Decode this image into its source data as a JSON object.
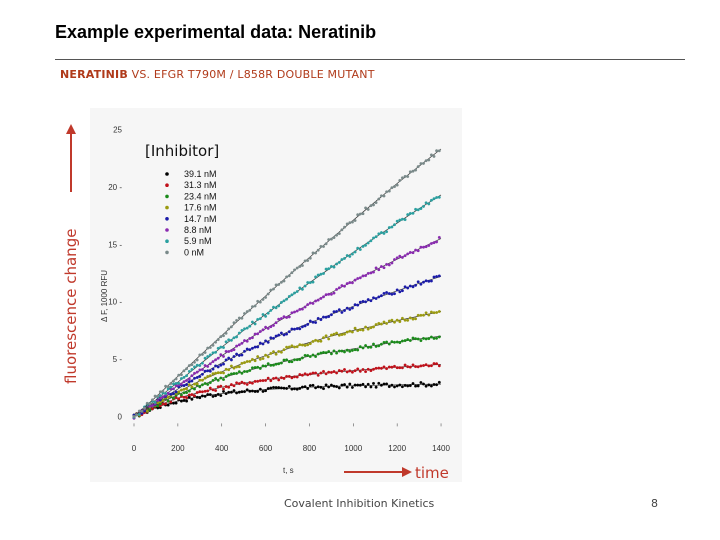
{
  "slide": {
    "title": "Example experimental data: Neratinib",
    "subtitle_bold": "NERATINIB",
    "subtitle_rest": " VS. EFGR T790M / L858R DOUBLE MUTANT",
    "footer": "Covalent Inhibition Kinetics",
    "page_number": "8",
    "annotation_y": "fluorescence change",
    "annotation_x": "time",
    "annotation_color": "#c0392b"
  },
  "chart_data": {
    "type": "line",
    "legend_title": "[Inhibitor]",
    "xlabel": "t, s",
    "ylabel": "Δ F, 1000 RFU",
    "xlim": [
      0,
      1450
    ],
    "ylim": [
      -1,
      26
    ],
    "x_ticks": [
      "0",
      "200",
      "400",
      "600",
      "800",
      "1000",
      "1200",
      "1400"
    ],
    "y_ticks": [
      "0",
      "5",
      "10",
      "15",
      "20",
      "25"
    ],
    "x_tick_values": [
      0,
      200,
      400,
      600,
      800,
      1000,
      1200,
      1400
    ],
    "y_tick_values": [
      0,
      5,
      10,
      15,
      20,
      25
    ],
    "grid": false,
    "legend_position": "top-left",
    "series": [
      {
        "name": "39.1 nM",
        "color": "#000000",
        "x": [
          0,
          100,
          200,
          300,
          400,
          500,
          600,
          700,
          800,
          900,
          1000,
          1100,
          1200,
          1300,
          1400
        ],
        "y": [
          0,
          0.8,
          1.35,
          1.75,
          2.0,
          2.2,
          2.35,
          2.45,
          2.55,
          2.62,
          2.68,
          2.72,
          2.76,
          2.8,
          2.82
        ]
      },
      {
        "name": "31.3 nM",
        "color": "#c0101a",
        "x": [
          0,
          100,
          200,
          300,
          400,
          500,
          600,
          700,
          800,
          900,
          1000,
          1100,
          1200,
          1300,
          1400
        ],
        "y": [
          0,
          0.9,
          1.6,
          2.1,
          2.55,
          2.9,
          3.2,
          3.45,
          3.65,
          3.85,
          4.0,
          4.15,
          4.3,
          4.4,
          4.55
        ]
      },
      {
        "name": "23.4 nM",
        "color": "#1a8a1a",
        "x": [
          0,
          100,
          200,
          300,
          400,
          500,
          600,
          700,
          800,
          900,
          1000,
          1100,
          1200,
          1300,
          1400
        ],
        "y": [
          0,
          1.0,
          1.9,
          2.7,
          3.35,
          3.9,
          4.4,
          4.85,
          5.25,
          5.6,
          5.9,
          6.2,
          6.5,
          6.75,
          7.0
        ]
      },
      {
        "name": "17.6 nM",
        "color": "#9a9a10",
        "x": [
          0,
          100,
          200,
          300,
          400,
          500,
          600,
          700,
          800,
          900,
          1000,
          1100,
          1200,
          1300,
          1400
        ],
        "y": [
          0,
          1.1,
          2.15,
          3.1,
          3.9,
          4.65,
          5.3,
          5.9,
          6.45,
          7.0,
          7.5,
          7.9,
          8.35,
          8.75,
          9.15
        ]
      },
      {
        "name": "14.7 nM",
        "color": "#1a1aa8",
        "x": [
          0,
          100,
          200,
          300,
          400,
          500,
          600,
          700,
          800,
          900,
          1000,
          1100,
          1200,
          1300,
          1400
        ],
        "y": [
          0,
          1.2,
          2.4,
          3.6,
          4.65,
          5.6,
          6.5,
          7.35,
          8.15,
          8.9,
          9.6,
          10.3,
          10.95,
          11.6,
          12.2
        ]
      },
      {
        "name": "8.8 nM",
        "color": "#8a2ab0",
        "x": [
          0,
          100,
          200,
          300,
          400,
          500,
          600,
          700,
          800,
          900,
          1000,
          1100,
          1200,
          1300,
          1400
        ],
        "y": [
          0,
          1.3,
          2.7,
          4.0,
          5.3,
          6.5,
          7.65,
          8.75,
          9.8,
          10.8,
          11.8,
          12.75,
          13.7,
          14.6,
          15.5
        ]
      },
      {
        "name": "5.9 nM",
        "color": "#2aa0a0",
        "x": [
          0,
          100,
          200,
          300,
          400,
          500,
          600,
          700,
          800,
          900,
          1000,
          1100,
          1200,
          1300,
          1400
        ],
        "y": [
          0,
          1.45,
          3.0,
          4.55,
          6.05,
          7.5,
          8.9,
          10.3,
          11.65,
          13.0,
          14.3,
          15.6,
          16.85,
          18.1,
          19.3
        ]
      },
      {
        "name": "0 nM",
        "color": "#7a8a8a",
        "x": [
          0,
          100,
          200,
          300,
          400,
          500,
          600,
          700,
          800,
          900,
          1000,
          1100,
          1200,
          1300,
          1400
        ],
        "y": [
          0,
          1.7,
          3.5,
          5.3,
          7.05,
          8.8,
          10.5,
          12.2,
          13.85,
          15.5,
          17.1,
          18.7,
          20.3,
          21.8,
          23.3
        ]
      }
    ]
  }
}
